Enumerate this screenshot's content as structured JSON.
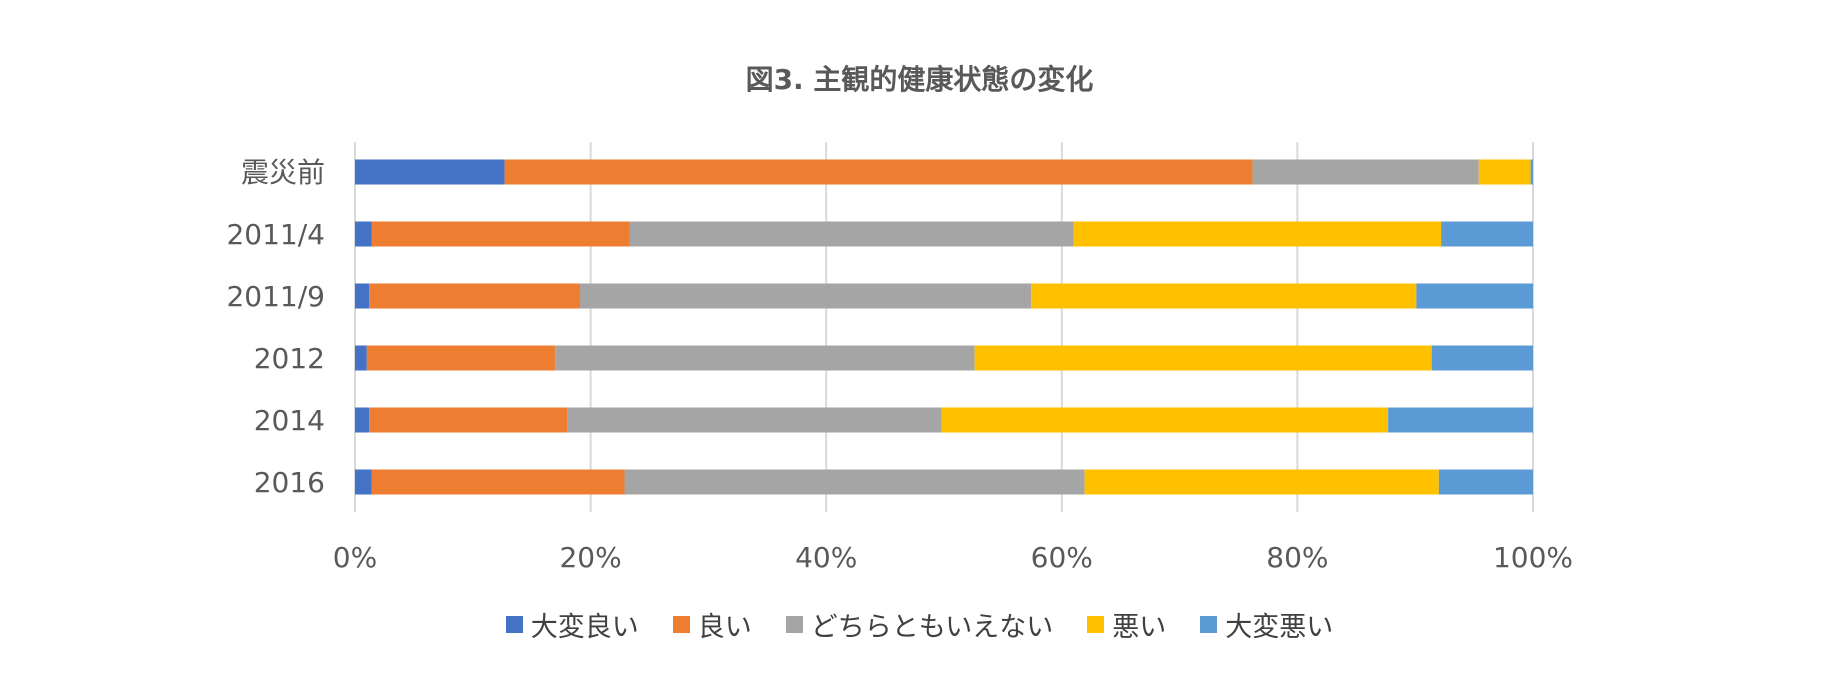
{
  "chart_data": {
    "type": "bar",
    "orientation": "horizontal",
    "stacked": "percent",
    "title": "図3. 主観的健康状態の変化",
    "xlabel": "",
    "ylabel": "",
    "xlim": [
      0,
      100
    ],
    "x_ticks": [
      "0%",
      "20%",
      "40%",
      "60%",
      "80%",
      "100%"
    ],
    "categories": [
      "震災前",
      "2011/4",
      "2011/9",
      "2012",
      "2014",
      "2016"
    ],
    "series": [
      {
        "name": "大変良い",
        "color": "#4472C4",
        "values": [
          12.7,
          1.4,
          1.2,
          1.0,
          1.2,
          1.4
        ]
      },
      {
        "name": "良い",
        "color": "#ED7D31",
        "values": [
          63.5,
          21.9,
          17.9,
          16.0,
          16.8,
          21.5
        ]
      },
      {
        "name": "どちらともいえない",
        "color": "#A5A5A5",
        "values": [
          19.2,
          37.7,
          38.3,
          35.6,
          31.8,
          39.1
        ]
      },
      {
        "name": "悪い",
        "color": "#FFC000",
        "values": [
          4.4,
          31.2,
          32.7,
          38.8,
          37.9,
          30.1
        ]
      },
      {
        "name": "大変悪い",
        "color": "#5B9BD5",
        "values": [
          0.2,
          7.8,
          9.9,
          8.6,
          12.3,
          8.0
        ]
      }
    ],
    "grid": true,
    "legend_position": "bottom"
  }
}
